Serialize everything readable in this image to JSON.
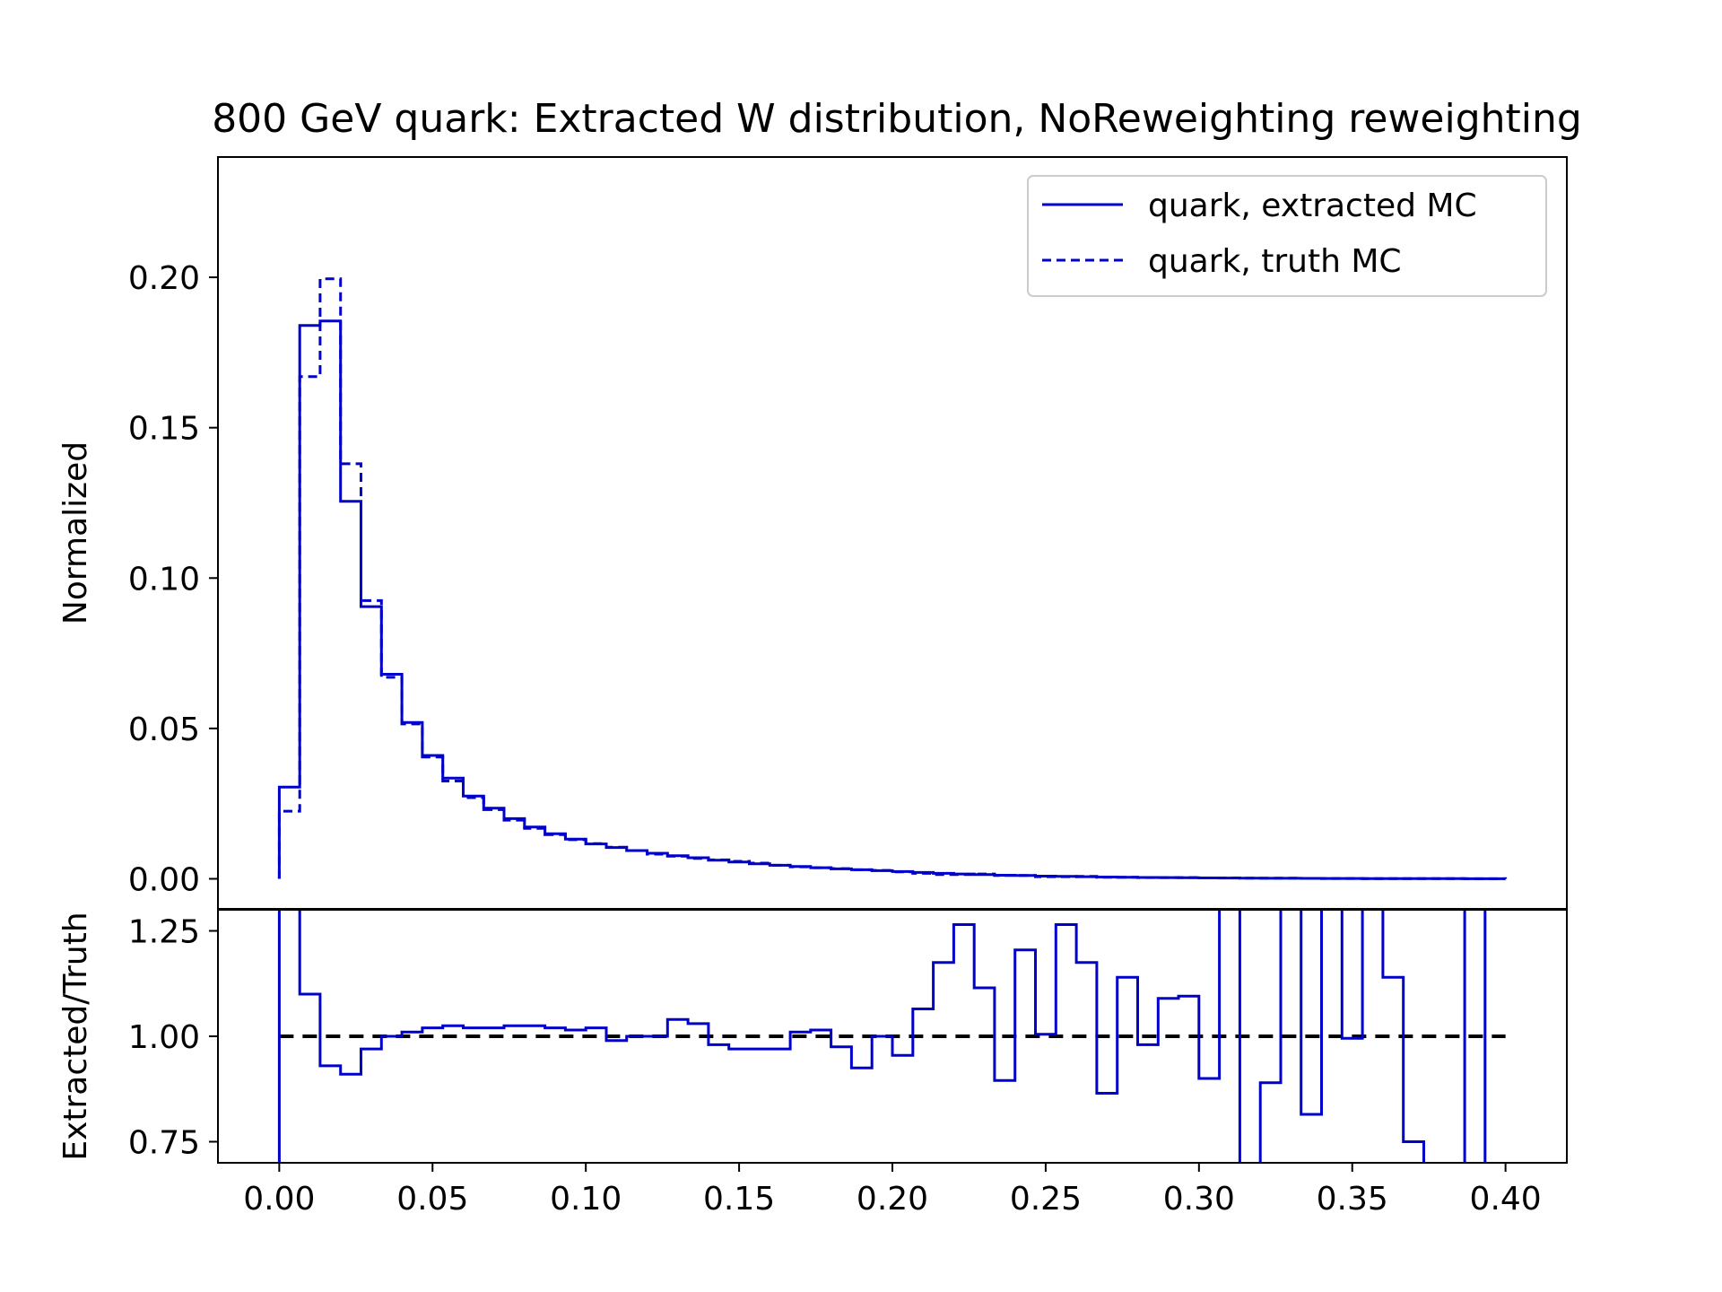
{
  "chart_data": [
    {
      "panel": "main",
      "type": "line",
      "title": "800 GeV quark: Extracted W distribution, NoReweighting reweighting",
      "xlabel": "",
      "ylabel": "Normalized",
      "xlim": [
        -0.02,
        0.42
      ],
      "ylim": [
        -0.01,
        0.24
      ],
      "x_ticks": [
        "0.00",
        "0.05",
        "0.10",
        "0.15",
        "0.20",
        "0.25",
        "0.30",
        "0.35",
        "0.40"
      ],
      "y_ticks": [
        "0.00",
        "0.05",
        "0.10",
        "0.15",
        "0.20"
      ],
      "legend_position": "top-right",
      "bin_edges": [
        0.0,
        0.00667,
        0.01333,
        0.02,
        0.02667,
        0.03333,
        0.04,
        0.04667,
        0.05333,
        0.06,
        0.06667,
        0.07333,
        0.08,
        0.08667,
        0.09333,
        0.1,
        0.10667,
        0.11333,
        0.12,
        0.12667,
        0.13333,
        0.14,
        0.14667,
        0.15333,
        0.16,
        0.16667,
        0.17333,
        0.18,
        0.18667,
        0.19333,
        0.2,
        0.20667,
        0.21333,
        0.22,
        0.22667,
        0.23333,
        0.24,
        0.24667,
        0.25333,
        0.26,
        0.26667,
        0.27333,
        0.28,
        0.28667,
        0.29333,
        0.3,
        0.30667,
        0.31333,
        0.32,
        0.32667,
        0.33333,
        0.34,
        0.34667,
        0.35333,
        0.36,
        0.36667,
        0.37333,
        0.38,
        0.38667,
        0.39333,
        0.4
      ],
      "series": [
        {
          "name": "quark, extracted MC",
          "style": "solid",
          "color": "#0000cc",
          "values": [
            0.0305,
            0.184,
            0.1855,
            0.1255,
            0.0905,
            0.068,
            0.052,
            0.041,
            0.0335,
            0.0275,
            0.0235,
            0.02,
            0.0172,
            0.015,
            0.0132,
            0.0116,
            0.0104,
            0.0094,
            0.0085,
            0.0077,
            0.007,
            0.0062,
            0.0056,
            0.005,
            0.0045,
            0.0041,
            0.0037,
            0.0033,
            0.003,
            0.0027,
            0.0024,
            0.0021,
            0.0018,
            0.0016,
            0.0014,
            0.0012,
            0.0011,
            0.0009,
            0.0008,
            0.0007,
            0.0006,
            0.0005,
            0.00045,
            0.0004,
            0.00035,
            0.0003,
            0.00025,
            0.0002,
            0.00018,
            0.00016,
            0.00014,
            0.00012,
            0.0001,
            8e-05,
            7e-05,
            6e-05,
            5e-05,
            4e-05,
            3e-05,
            2e-05
          ]
        },
        {
          "name": "quark, truth MC",
          "style": "dashed",
          "color": "#0000cc",
          "values": [
            0.0225,
            0.167,
            0.1995,
            0.138,
            0.0925,
            0.067,
            0.0515,
            0.0405,
            0.0325,
            0.027,
            0.023,
            0.0195,
            0.0168,
            0.0147,
            0.013,
            0.0117,
            0.0105,
            0.0094,
            0.0082,
            0.0075,
            0.0068,
            0.0063,
            0.0058,
            0.0052,
            0.0045,
            0.004,
            0.0037,
            0.0034,
            0.003,
            0.0028,
            0.0023,
            0.0018,
            0.0014,
            0.0014,
            0.0016,
            0.0011,
            0.0011,
            0.0007,
            0.0007,
            0.0008,
            0.0005,
            0.0005,
            0.0004,
            0.0004,
            0.0004,
            0.0003,
            0.0003,
            0.0002,
            0.0002,
            0.0002,
            0.00014,
            0.00012,
            0.0001,
            8e-05,
            7e-05,
            6e-05,
            5e-05,
            4e-05,
            3e-05,
            2e-05
          ]
        }
      ]
    },
    {
      "panel": "ratio",
      "type": "line",
      "xlabel": "",
      "ylabel": "Extracted/Truth",
      "xlim": [
        -0.02,
        0.42
      ],
      "ylim": [
        0.7,
        1.3
      ],
      "x_ticks": [
        "0.00",
        "0.05",
        "0.10",
        "0.15",
        "0.20",
        "0.25",
        "0.30",
        "0.35",
        "0.40"
      ],
      "y_ticks": [
        "0.75",
        "1.00",
        "1.25"
      ],
      "reference_line": 1.0,
      "series": [
        {
          "name": "",
          "style": "solid",
          "color": "#0000cc",
          "values": [
            1.36,
            1.1,
            0.93,
            0.91,
            0.97,
            1.0,
            1.01,
            1.02,
            1.025,
            1.02,
            1.02,
            1.025,
            1.025,
            1.02,
            1.015,
            1.02,
            0.99,
            1.0,
            1.0,
            1.04,
            1.03,
            0.98,
            0.97,
            0.97,
            0.97,
            1.01,
            1.015,
            0.975,
            0.925,
            1.0,
            0.955,
            1.065,
            1.175,
            1.265,
            1.115,
            0.895,
            1.205,
            1.005,
            1.265,
            1.175,
            0.865,
            1.14,
            0.98,
            1.09,
            1.095,
            0.9,
            1.35,
            0.6,
            0.89,
            1.35,
            0.815,
            1.35,
            0.995,
            1.35,
            1.14,
            0.75,
            0.6,
            0.6,
            1.35,
            0.6
          ]
        }
      ]
    }
  ]
}
